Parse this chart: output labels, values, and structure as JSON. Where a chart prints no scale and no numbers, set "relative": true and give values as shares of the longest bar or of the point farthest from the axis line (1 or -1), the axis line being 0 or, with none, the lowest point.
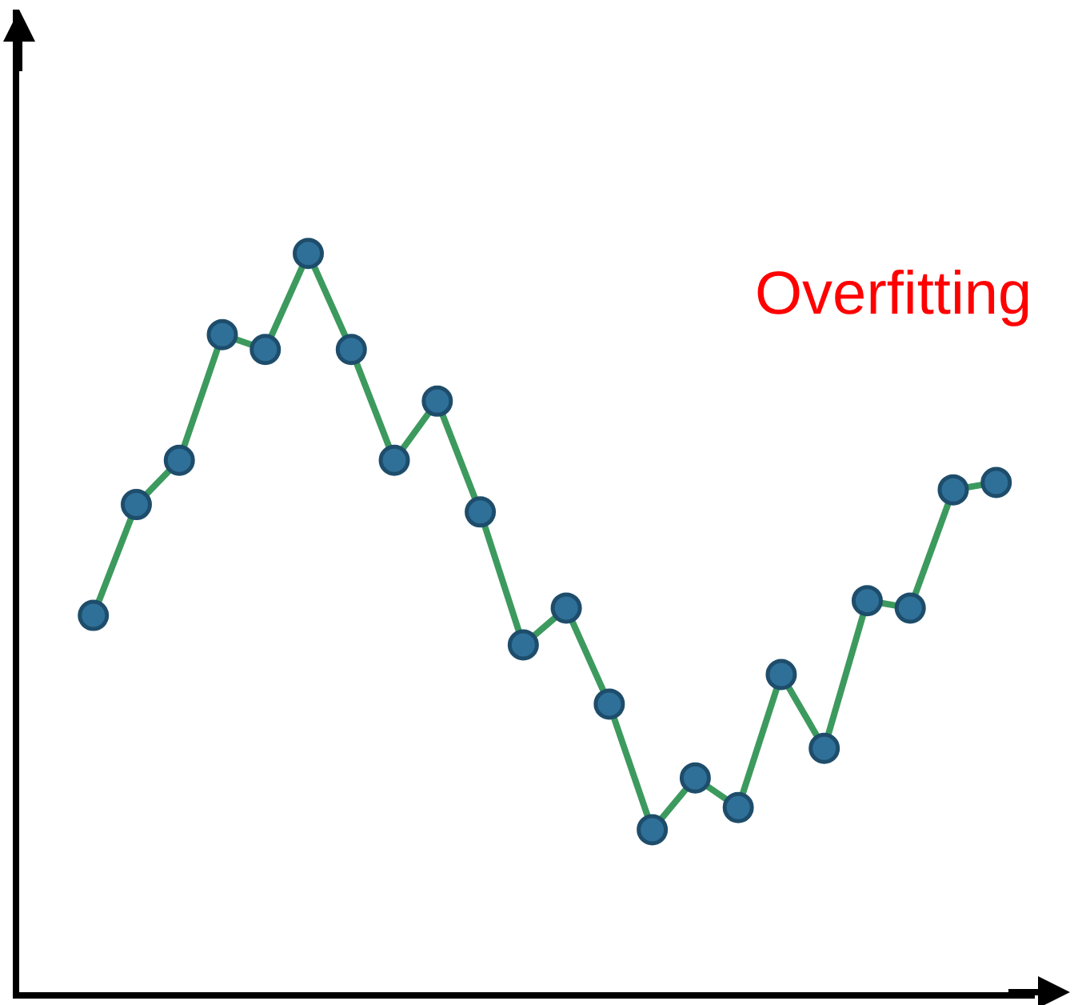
{
  "chart_data": {
    "type": "line",
    "relative": true,
    "annotations": [
      "Overfitting"
    ],
    "categories": [
      null,
      null,
      null,
      null,
      null,
      null,
      null,
      null,
      null,
      null,
      null,
      null,
      null,
      null,
      null,
      null,
      null,
      null,
      null,
      null,
      null,
      null
    ],
    "tick_labels": false,
    "marker": "circle",
    "line_style": "solid",
    "series": [
      {
        "color": "#3d9a5e",
        "values": [
          0.51,
          0.66,
          0.72,
          0.89,
          0.87,
          1,
          0.87,
          0.72,
          0.8,
          0.65,
          0.47,
          0.52,
          0.39,
          0.22,
          0.29,
          0.25,
          0.43,
          0.33,
          0.53,
          0.52,
          0.68,
          0.69
        ]
      }
    ]
  }
}
